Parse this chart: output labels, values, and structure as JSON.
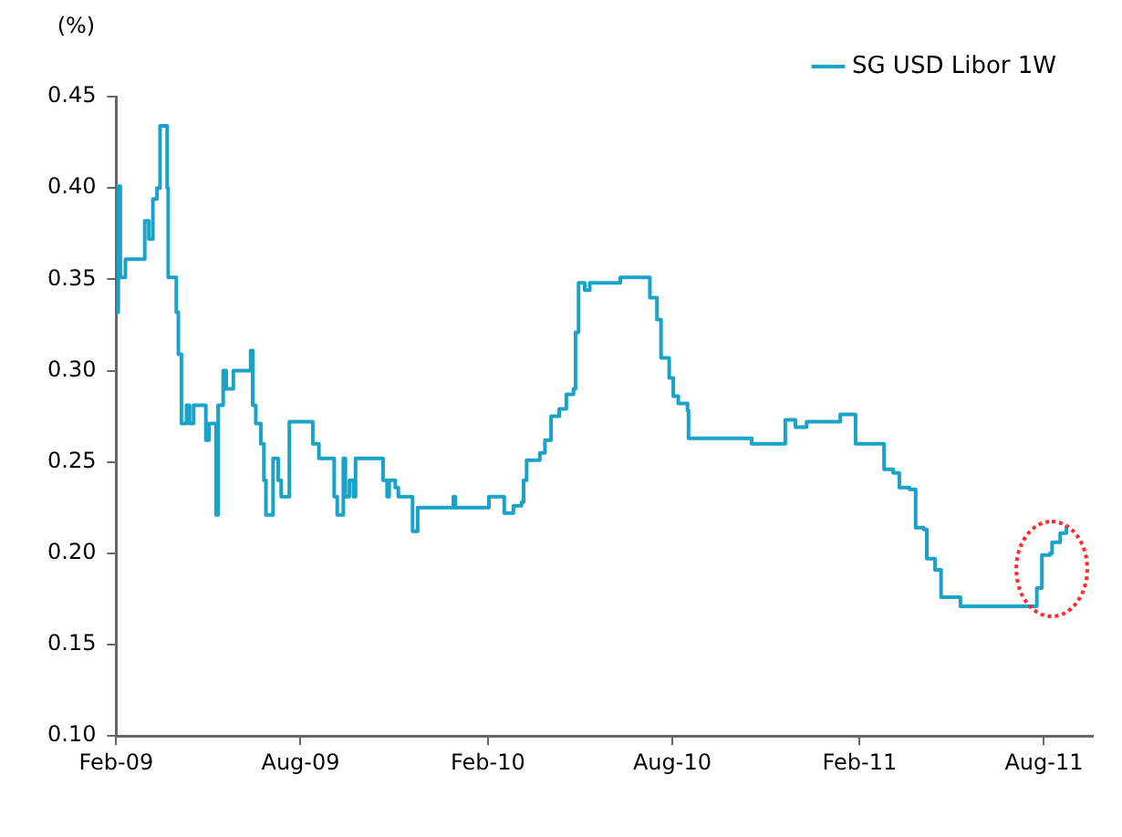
{
  "chart_data": {
    "type": "step",
    "ylabel": "(%)",
    "legend": "top right",
    "grid": false,
    "marker": "none",
    "line_style": "solid",
    "xlim": [
      "2009-02-01",
      "2011-09-18"
    ],
    "xticks": [
      {
        "value": "2009-02-01",
        "label": "Feb-09"
      },
      {
        "value": "2009-08-01",
        "label": "Aug-09"
      },
      {
        "value": "2010-02-01",
        "label": "Feb-10"
      },
      {
        "value": "2010-08-01",
        "label": "Aug-10"
      },
      {
        "value": "2011-02-01",
        "label": "Feb-11"
      },
      {
        "value": "2011-08-01",
        "label": "Aug-11"
      }
    ],
    "ylim": [
      0.1,
      0.45
    ],
    "yticks": [
      {
        "value": 0.1,
        "label": "0.10"
      },
      {
        "value": 0.15,
        "label": "0.15"
      },
      {
        "value": 0.2,
        "label": "0.20"
      },
      {
        "value": 0.25,
        "label": "0.25"
      },
      {
        "value": 0.3,
        "label": "0.30"
      },
      {
        "value": 0.35,
        "label": "0.35"
      },
      {
        "value": 0.4,
        "label": "0.40"
      },
      {
        "value": 0.45,
        "label": "0.45"
      }
    ],
    "x": [
      "2009-02-01",
      "2009-02-03",
      "2009-02-05",
      "2009-02-10",
      "2009-02-27",
      "2009-03-01",
      "2009-03-05",
      "2009-03-09",
      "2009-03-13",
      "2009-03-16",
      "2009-03-22",
      "2009-03-23",
      "2009-03-24",
      "2009-04-01",
      "2009-04-03",
      "2009-04-06",
      "2009-04-11",
      "2009-04-14",
      "2009-04-18",
      "2009-04-27",
      "2009-04-30",
      "2009-05-03",
      "2009-05-10",
      "2009-05-12",
      "2009-05-17",
      "2009-05-20",
      "2009-05-25",
      "2009-05-27",
      "2009-06-10",
      "2009-06-13",
      "2009-06-15",
      "2009-06-18",
      "2009-06-23",
      "2009-06-26",
      "2009-06-28",
      "2009-07-05",
      "2009-07-10",
      "2009-07-13",
      "2009-07-20",
      "2009-07-21",
      "2009-08-12",
      "2009-08-13",
      "2009-08-19",
      "2009-08-31",
      "2009-09-03",
      "2009-09-06",
      "2009-09-12",
      "2009-09-14",
      "2009-09-18",
      "2009-09-22",
      "2009-09-24",
      "2009-10-18",
      "2009-10-21",
      "2009-10-25",
      "2009-10-27",
      "2009-11-02",
      "2009-11-05",
      "2009-11-15",
      "2009-11-19",
      "2009-11-24",
      "2009-12-27",
      "2009-12-29",
      "2009-12-31",
      "2010-01-29",
      "2010-02-02",
      "2010-02-16",
      "2010-02-17",
      "2010-02-26",
      "2010-03-06",
      "2010-03-08",
      "2010-03-11",
      "2010-03-24",
      "2010-03-29",
      "2010-04-04",
      "2010-04-12",
      "2010-04-19",
      "2010-04-26",
      "2010-04-28",
      "2010-05-01",
      "2010-05-07",
      "2010-05-12",
      "2010-06-09",
      "2010-06-11",
      "2010-07-03",
      "2010-07-10",
      "2010-07-17",
      "2010-07-21",
      "2010-07-28",
      "2010-07-29",
      "2010-08-02",
      "2010-08-07",
      "2010-08-16",
      "2010-08-17",
      "2010-10-15",
      "2010-10-18",
      "2010-11-19",
      "2010-11-20",
      "2010-11-30",
      "2010-12-11",
      "2011-01-11",
      "2011-01-13",
      "2011-01-26",
      "2011-01-28",
      "2011-02-20",
      "2011-02-25",
      "2011-03-06",
      "2011-03-12",
      "2011-03-22",
      "2011-03-28",
      "2011-04-05",
      "2011-04-08",
      "2011-04-16",
      "2011-04-22",
      "2011-05-08",
      "2011-05-11",
      "2011-07-22",
      "2011-07-25",
      "2011-07-30",
      "2011-08-07",
      "2011-08-09",
      "2011-08-17",
      "2011-08-23"
    ],
    "series": [
      {
        "name": "SG USD Libor 1W",
        "color": "#1aa3c8",
        "values": [
          0.332,
          0.401,
          0.351,
          0.361,
          0.361,
          0.382,
          0.372,
          0.394,
          0.4,
          0.434,
          0.434,
          0.4,
          0.351,
          0.332,
          0.309,
          0.271,
          0.281,
          0.271,
          0.281,
          0.281,
          0.262,
          0.271,
          0.221,
          0.281,
          0.3,
          0.29,
          0.29,
          0.3,
          0.3,
          0.311,
          0.281,
          0.271,
          0.26,
          0.24,
          0.221,
          0.252,
          0.24,
          0.231,
          0.231,
          0.272,
          0.272,
          0.26,
          0.252,
          0.252,
          0.231,
          0.221,
          0.252,
          0.231,
          0.24,
          0.231,
          0.252,
          0.252,
          0.24,
          0.231,
          0.24,
          0.236,
          0.231,
          0.231,
          0.212,
          0.225,
          0.225,
          0.231,
          0.225,
          0.225,
          0.231,
          0.231,
          0.222,
          0.226,
          0.228,
          0.24,
          0.251,
          0.255,
          0.262,
          0.275,
          0.279,
          0.287,
          0.29,
          0.321,
          0.348,
          0.344,
          0.348,
          0.348,
          0.351,
          0.351,
          0.34,
          0.328,
          0.307,
          0.307,
          0.296,
          0.286,
          0.282,
          0.278,
          0.263,
          0.263,
          0.26,
          0.26,
          0.273,
          0.269,
          0.272,
          0.272,
          0.276,
          0.276,
          0.26,
          0.26,
          0.246,
          0.244,
          0.236,
          0.235,
          0.214,
          0.213,
          0.197,
          0.191,
          0.176,
          0.176,
          0.171,
          0.171,
          0.181,
          0.199,
          0.2,
          0.206,
          0.211,
          0.215
        ]
      }
    ]
  }
}
